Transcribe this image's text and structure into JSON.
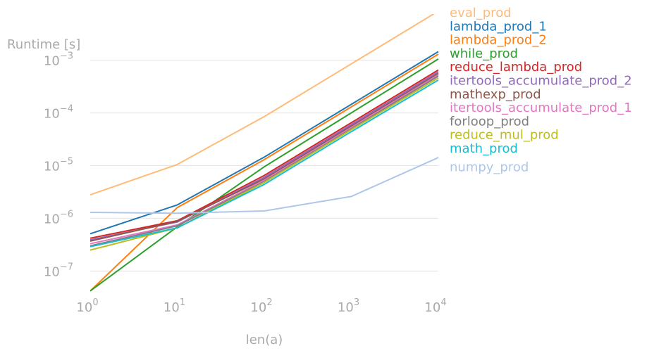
{
  "chart_data": {
    "type": "line",
    "xlabel": "len(a)",
    "ylabel": "Runtime [s]",
    "xscale": "log",
    "yscale": "log",
    "xlim": [
      1,
      10000
    ],
    "ylim": [
      4e-08,
      0.004
    ],
    "grid": "horizontal",
    "legend_placement": "right, labels at line ends",
    "x": [
      1,
      10,
      100,
      1000,
      10000
    ],
    "x_ticks": [
      {
        "base": "10",
        "exp": "0",
        "value": 1
      },
      {
        "base": "10",
        "exp": "1",
        "value": 10
      },
      {
        "base": "10",
        "exp": "2",
        "value": 100
      },
      {
        "base": "10",
        "exp": "3",
        "value": 1000
      },
      {
        "base": "10",
        "exp": "4",
        "value": 10000
      }
    ],
    "y_ticks": [
      {
        "base": "10",
        "exp": "−7",
        "value": 1e-07
      },
      {
        "base": "10",
        "exp": "−6",
        "value": 1e-06
      },
      {
        "base": "10",
        "exp": "−5",
        "value": 1e-05
      },
      {
        "base": "10",
        "exp": "−4",
        "value": 0.0001
      },
      {
        "base": "10",
        "exp": "−3",
        "value": 0.001
      }
    ],
    "series": [
      {
        "name": "eval_prod",
        "color": "#ffbb78",
        "values": [
          2.8e-06,
          1.05e-05,
          8.5e-05,
          0.00085,
          0.0085
        ]
      },
      {
        "name": "lambda_prod_1",
        "color": "#1f77b4",
        "values": [
          5.1e-07,
          1.8e-06,
          1.45e-05,
          0.000145,
          0.00145
        ]
      },
      {
        "name": "lambda_prod_2",
        "color": "#ff7f0e",
        "values": [
          4.2e-08,
          1.6e-06,
          1.3e-05,
          0.00013,
          0.0013
        ]
      },
      {
        "name": "while_prod",
        "color": "#2ca02c",
        "values": [
          4.2e-08,
          6.9e-07,
          9.5e-06,
          0.0001,
          0.00105
        ]
      },
      {
        "name": "reduce_lambda_prod",
        "color": "#d62728",
        "values": [
          4.2e-07,
          9e-07,
          6.5e-06,
          6.5e-05,
          0.00065
        ]
      },
      {
        "name": "itertools_accumulate_prod_2",
        "color": "#9467bd",
        "values": [
          3.9e-07,
          8.5e-07,
          6e-06,
          6e-05,
          0.0006
        ]
      },
      {
        "name": "mathexp_prod",
        "color": "#8c564b",
        "values": [
          3.7e-07,
          8.8e-07,
          5.6e-06,
          5.6e-05,
          0.00056
        ]
      },
      {
        "name": "itertools_accumulate_prod_1",
        "color": "#e377c2",
        "values": [
          3.3e-07,
          7.5e-07,
          5.3e-06,
          5.3e-05,
          0.00053
        ]
      },
      {
        "name": "forloop_prod",
        "color": "#7f7f7f",
        "values": [
          3e-07,
          7.2e-07,
          5e-06,
          5e-05,
          0.0005
        ]
      },
      {
        "name": "reduce_mul_prod",
        "color": "#bcbd22",
        "values": [
          2.5e-07,
          6.6e-07,
          4.8e-06,
          4.8e-05,
          0.00046
        ]
      },
      {
        "name": "math_prod",
        "color": "#17becf",
        "values": [
          2.9e-07,
          6.6e-07,
          4.4e-06,
          4.4e-05,
          0.00042
        ]
      },
      {
        "name": "numpy_prod",
        "color": "#aec7e8",
        "values": [
          1.3e-06,
          1.25e-06,
          1.38e-06,
          2.6e-06,
          1.42e-05
        ]
      }
    ]
  }
}
